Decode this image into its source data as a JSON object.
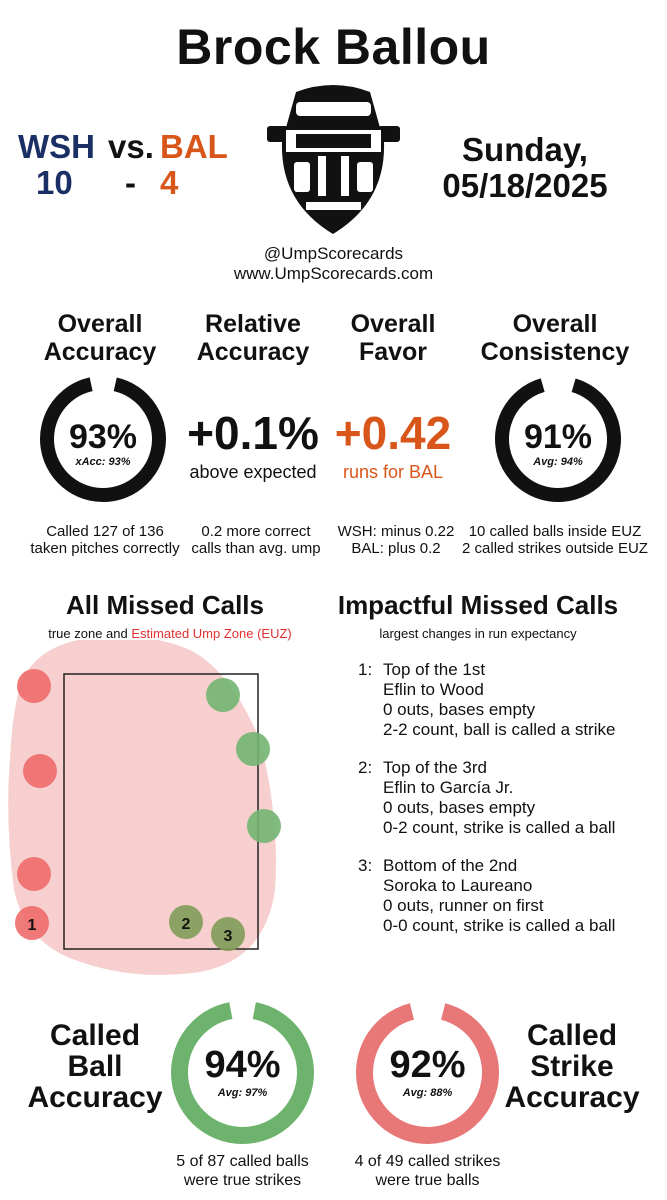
{
  "title": "Brock Ballou",
  "away": {
    "abbr": "WSH",
    "score": "10",
    "color": "#1a2f63"
  },
  "home": {
    "abbr": "BAL",
    "score": "4",
    "color": "#d9561a"
  },
  "vs": "vs.",
  "dash": "-",
  "date": {
    "day": "Sunday,",
    "date": "05/18/2025"
  },
  "handle": "@UmpScorecards",
  "site": "www.UmpScorecards.com",
  "icon": "umpire-mask-icon",
  "overall_accuracy": {
    "h1": "Overall",
    "h2": "Accuracy",
    "value": "93%",
    "value_pct": 93,
    "sub": "xAcc: 93%",
    "note1": "Called 127 of 136",
    "note2": "taken pitches correctly"
  },
  "relative_accuracy": {
    "h1": "Relative",
    "h2": "Accuracy",
    "value": "+0.1%",
    "sub": "above expected",
    "note1": "0.2 more correct",
    "note2": "calls than avg. ump"
  },
  "overall_favor": {
    "h1": "Overall",
    "h2": "Favor",
    "value": "+0.42",
    "sub": "runs for BAL",
    "note1": "WSH: minus 0.22",
    "note2": "BAL: plus 0.2"
  },
  "overall_consistency": {
    "h1": "Overall",
    "h2": "Consistency",
    "value": "91%",
    "value_pct": 91,
    "sub": "Avg: 94%",
    "note1": "10 called balls inside EUZ",
    "note2": "2 called strikes outside EUZ"
  },
  "missed": {
    "title": "All Missed Calls",
    "sub_a": "true zone and",
    "sub_b": "Estimated Ump Zone (EUZ)",
    "sub_b_color": "#e03030",
    "markers": [
      {
        "color": "red",
        "label": ""
      },
      {
        "color": "red",
        "label": ""
      },
      {
        "color": "red",
        "label": ""
      },
      {
        "color": "red",
        "label": "1"
      },
      {
        "color": "green",
        "label": ""
      },
      {
        "color": "green",
        "label": ""
      },
      {
        "color": "green",
        "label": ""
      },
      {
        "color": "green",
        "label": "2"
      },
      {
        "color": "green",
        "label": "3"
      }
    ]
  },
  "impactful": {
    "title": "Impactful Missed Calls",
    "sub": "largest changes in run expectancy",
    "items": [
      {
        "num": "1:",
        "l1": "Top of the 1st",
        "l2": "Eflin to Wood",
        "l3": "0 outs, bases empty",
        "l4": "2-2 count, ball is called a strike"
      },
      {
        "num": "2:",
        "l1": "Top of the 3rd",
        "l2": "Eflin to García Jr.",
        "l3": "0 outs, bases empty",
        "l4": "0-2 count, strike is called a ball"
      },
      {
        "num": "3:",
        "l1": "Bottom of the 2nd",
        "l2": "Soroka to Laureano",
        "l3": "0 outs, runner on first",
        "l4": "0-0 count, strike is called a ball"
      }
    ]
  },
  "ball_acc": {
    "h1": "Called",
    "h2": "Ball",
    "h3": "Accuracy",
    "value": "94%",
    "value_pct": 94,
    "sub": "Avg: 97%",
    "note1": "5 of 87 called balls",
    "note2": "were true strikes",
    "color": "#6db36d"
  },
  "strike_acc": {
    "h1": "Called",
    "h2": "Strike",
    "h3": "Accuracy",
    "value": "92%",
    "value_pct": 92,
    "sub": "Avg: 88%",
    "note1": "4 of 49 called strikes",
    "note2": "were true balls",
    "color": "#e87878"
  }
}
